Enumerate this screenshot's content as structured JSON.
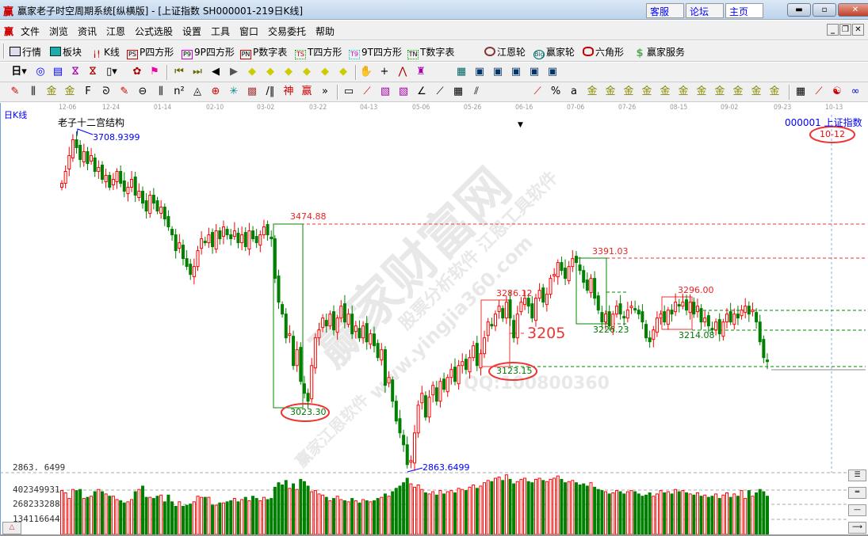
{
  "window": {
    "title": "赢家老子时空周期系统[纵横版] - [上证指数  SH000001-219日K线]",
    "logo": "赢",
    "links": [
      "客服",
      "论坛",
      "主页"
    ],
    "controls": [
      "minimize",
      "maximize",
      "close"
    ]
  },
  "menu": {
    "logo": "赢",
    "items": [
      "文件",
      "浏览",
      "资讯",
      "江恩",
      "公式选股",
      "设置",
      "工具",
      "窗口",
      "交易委托",
      "帮助"
    ]
  },
  "toolbar1": [
    {
      "label": "行情",
      "icon": "quote-table-icon"
    },
    {
      "label": "板块",
      "icon": "sector-icon"
    },
    {
      "label": "K线",
      "icon": "kline-icon"
    },
    {
      "label": "P四方形",
      "icon": "PS"
    },
    {
      "label": "9P四方形",
      "icon": "P9"
    },
    {
      "label": "P数字表",
      "icon": "PN"
    },
    {
      "label": "T四方形",
      "icon": "TS"
    },
    {
      "label": "9T四方形",
      "icon": "T9"
    },
    {
      "label": "T数字表",
      "icon": "TN"
    },
    {
      "label": "江恩轮",
      "icon": "gann-wheel-icon"
    },
    {
      "label": "赢家轮",
      "icon": "Big"
    },
    {
      "label": "六角形",
      "icon": "hexagon-icon"
    },
    {
      "label": "赢家服务",
      "icon": "$"
    }
  ],
  "period_selector": "日",
  "chart": {
    "period_label": "日K线",
    "indicator_title": "老子十二宫结构",
    "symbol": "000001",
    "symbol_name": "上证指数",
    "cursor_date": "10-12",
    "date_ticks": [
      "12-06",
      "12-24",
      "01-14",
      "02-10",
      "03-02",
      "03-22",
      "04-13",
      "05-06",
      "05-26",
      "06-16",
      "07-06",
      "07-26",
      "08-15",
      "09-02",
      "09-23",
      "10-13"
    ],
    "high_label": "3708.9399",
    "low_label": "2863.6499",
    "axis_low_label": "2863. 6499",
    "annotations": {
      "a1": "3474.88",
      "a2": "3023.30",
      "a3": "3286.12",
      "a4": "3205",
      "a5": "3123.15",
      "a6": "3391.03",
      "a7": "3226.23",
      "a8": "3296.00",
      "a9": "3214.08"
    },
    "watermark": [
      "赢家财富网",
      "股票分析软件 江恩工具软件",
      "www.yingjia360.com",
      "赢家江恩软件",
      "QQ:100800360"
    ],
    "colors": {
      "up": "#ff0000",
      "down": "#008000",
      "label_blue": "#0000ff"
    }
  },
  "volume": {
    "ticks": [
      "402349931",
      "268233288",
      "134116644"
    ]
  },
  "chart_data": {
    "type": "candlestick",
    "x_range": [
      "12-06",
      "10-12"
    ],
    "ylim": [
      2863.6499,
      3708.9399
    ],
    "closes": [
      3590,
      3620,
      3660,
      3700,
      3680,
      3650,
      3670,
      3640,
      3660,
      3620,
      3630,
      3600,
      3610,
      3580,
      3600,
      3620,
      3590,
      3570,
      3580,
      3600,
      3560,
      3570,
      3540,
      3520,
      3560,
      3540,
      3520,
      3530,
      3500,
      3480,
      3460,
      3420,
      3440,
      3400,
      3380,
      3360,
      3380,
      3420,
      3450,
      3440,
      3460,
      3430,
      3470,
      3450,
      3480,
      3460,
      3450,
      3470,
      3440,
      3460,
      3430,
      3470,
      3450,
      3440,
      3460,
      3480,
      3460,
      3450,
      3350,
      3290,
      3260,
      3200,
      3210,
      3130,
      3170,
      3090,
      3060,
      3040,
      3130,
      3200,
      3220,
      3250,
      3230,
      3260,
      3220,
      3250,
      3280,
      3240,
      3260,
      3210,
      3230,
      3200,
      3230,
      3190,
      3210,
      3180,
      3150,
      3170,
      3080,
      3100,
      3040,
      2990,
      2960,
      2930,
      2880,
      2890,
      2960,
      3030,
      3060,
      3000,
      3050,
      3080,
      3040,
      3090,
      3070,
      3100,
      3120,
      3090,
      3130,
      3140,
      3120,
      3150,
      3180,
      3130,
      3160,
      3200,
      3240,
      3230,
      3260,
      3280,
      3250,
      3290,
      3250,
      3200,
      3260,
      3290,
      3300,
      3280,
      3250,
      3300,
      3320,
      3290,
      3310,
      3350,
      3360,
      3390,
      3370,
      3350,
      3380,
      3400,
      3390,
      3370,
      3340,
      3320,
      3350,
      3300,
      3270,
      3240,
      3260,
      3230,
      3260,
      3280,
      3260,
      3250,
      3270,
      3280,
      3270,
      3260,
      3240,
      3200,
      3190,
      3220,
      3250,
      3260,
      3240,
      3270,
      3260,
      3290,
      3280,
      3290,
      3270,
      3290,
      3260,
      3280,
      3240,
      3250,
      3230,
      3220,
      3240,
      3210,
      3240,
      3260,
      3240,
      3260,
      3250,
      3270,
      3280,
      3260,
      3270,
      3240,
      3190,
      3150,
      3140
    ],
    "volume_1e8": [
      3.9,
      3.7,
      3.2,
      4.0,
      3.9,
      4.0,
      3.2,
      3.3,
      3.4,
      3.8,
      4.0,
      3.8,
      3.6,
      3.4,
      3.4,
      3.1,
      3.0,
      2.8,
      2.9,
      3.1,
      3.8,
      4.0,
      4.3,
      3.3,
      3.3,
      3.2,
      3.4,
      3.5,
      2.9,
      3.5,
      2.9,
      2.5,
      2.9,
      2.5,
      2.6,
      2.7,
      2.9,
      3.4,
      3.3,
      3.3,
      3.3,
      2.6,
      2.6,
      2.8,
      2.8,
      2.9,
      3.0,
      3.2,
      2.9,
      3.1,
      3.3,
      3.0,
      3.4,
      3.2,
      3.0,
      3.3,
      3.1,
      3.2,
      4.2,
      4.6,
      4.4,
      4.8,
      4.1,
      4.5,
      4.0,
      4.9,
      4.7,
      4.3,
      3.8,
      3.9,
      3.6,
      3.5,
      3.3,
      3.0,
      3.2,
      3.4,
      3.1,
      3.0,
      2.9,
      3.2,
      3.0,
      2.8,
      3.1,
      3.0,
      2.9,
      3.0,
      3.2,
      3.3,
      3.6,
      3.4,
      3.8,
      4.1,
      4.3,
      4.6,
      5.0,
      4.5,
      4.2,
      4.4,
      4.0,
      3.7,
      3.6,
      3.8,
      3.5,
      3.9,
      3.6,
      3.8,
      3.9,
      3.7,
      4.1,
      4.0,
      3.9,
      4.2,
      4.4,
      4.1,
      4.3,
      4.6,
      4.8,
      4.7,
      5.0,
      5.1,
      4.8,
      5.3,
      4.9,
      4.5,
      4.7,
      4.9,
      5.0,
      4.7,
      4.6,
      4.9,
      5.0,
      4.8,
      4.7,
      4.9,
      5.0,
      5.2,
      4.9,
      4.6,
      4.7,
      4.8,
      4.6,
      4.4,
      4.5,
      4.3,
      4.6,
      4.2,
      4.0,
      3.9,
      3.8,
      3.6,
      3.7,
      3.9,
      3.8,
      3.6,
      3.8,
      3.9,
      3.8,
      3.6,
      3.4,
      3.5,
      3.7,
      3.4,
      3.6,
      3.9,
      3.7,
      3.8,
      3.6,
      4.0,
      3.8,
      3.9,
      3.7,
      3.6,
      3.5,
      3.7,
      3.4,
      3.5,
      3.3,
      3.4,
      3.6,
      3.2,
      3.5,
      3.7,
      3.3,
      3.6,
      3.4,
      3.9,
      3.2,
      3.9,
      3.4,
      3.7,
      4.0,
      3.8,
      3.4
    ]
  }
}
